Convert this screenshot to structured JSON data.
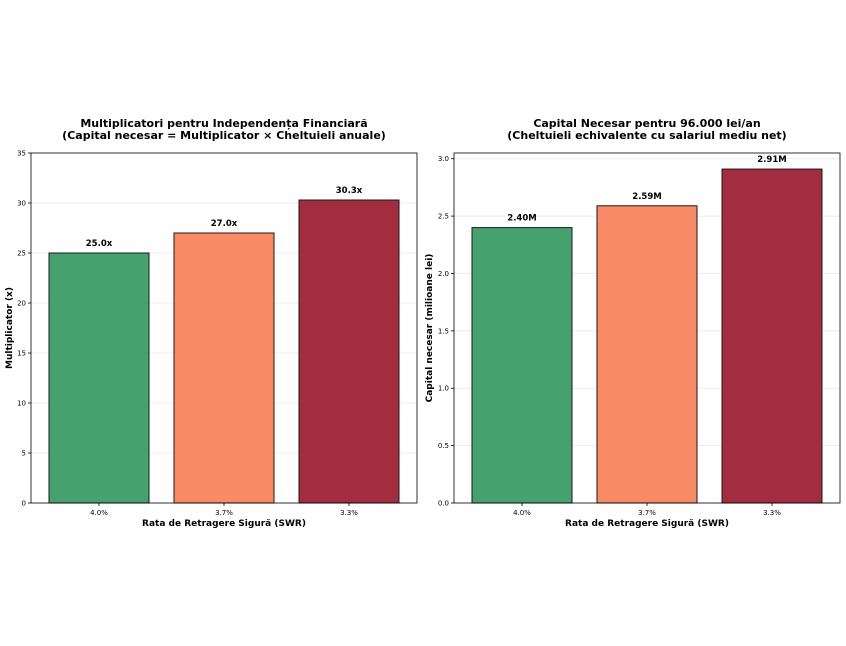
{
  "chart_data": [
    {
      "type": "bar",
      "title": "Multiplicatori pentru Independența Financiară",
      "subtitle": "(Capital necesar = Multiplicator × Cheltuieli anuale)",
      "xlabel": "Rata de Retragere Sigură (SWR)",
      "ylabel": "Multiplicator (x)",
      "categories": [
        "4.0%",
        "3.7%",
        "3.3%"
      ],
      "values": [
        25.0,
        27.0,
        30.3
      ],
      "value_labels": [
        "25.0x",
        "27.0x",
        "30.3x"
      ],
      "ylim": [
        0,
        35
      ],
      "yticks": [
        "0",
        "5",
        "10",
        "15",
        "20",
        "25",
        "30",
        "35"
      ],
      "ytick_values": [
        0,
        5,
        10,
        15,
        20,
        25,
        30,
        35
      ],
      "colors": [
        "#45a26f",
        "#f88a66",
        "#a32c3f"
      ],
      "grid": "horizontal"
    },
    {
      "type": "bar",
      "title": "Capital Necesar pentru 96.000 lei/an",
      "subtitle": "(Cheltuieli echivalente cu salariul mediu net)",
      "xlabel": "Rata de Retragere Sigură (SWR)",
      "ylabel": "Capital necesar (milioane lei)",
      "categories": [
        "4.0%",
        "3.7%",
        "3.3%"
      ],
      "values": [
        2.4,
        2.59,
        2.91
      ],
      "value_labels": [
        "2.40M",
        "2.59M",
        "2.91M"
      ],
      "ylim": [
        0,
        3.05
      ],
      "yticks": [
        "0.0",
        "0.5",
        "1.0",
        "1.5",
        "2.0",
        "2.5",
        "3.0"
      ],
      "ytick_values": [
        0,
        0.5,
        1.0,
        1.5,
        2.0,
        2.5,
        3.0
      ],
      "colors": [
        "#45a26f",
        "#f88a66",
        "#a32c3f"
      ],
      "grid": "horizontal"
    }
  ]
}
